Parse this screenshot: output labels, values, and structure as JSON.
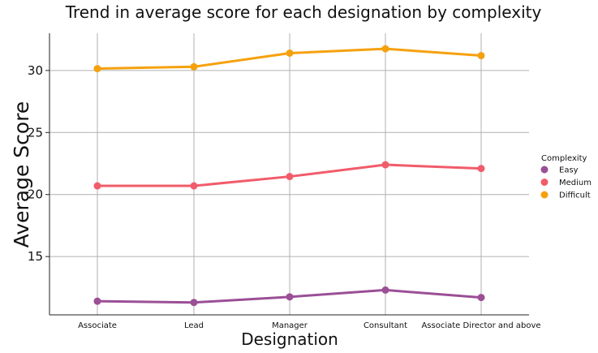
{
  "chart_data": {
    "type": "line",
    "title": "Trend in average score for each designation by complexity",
    "xlabel": "Designation",
    "ylabel": "Average Score",
    "categories": [
      "Associate",
      "Lead",
      "Manager",
      "Consultant",
      "Associate Director and above"
    ],
    "y_ticks": [
      15,
      20,
      25,
      30
    ],
    "ylim": [
      10.3,
      33.0
    ],
    "grid": true,
    "legend": {
      "title": "Complexity",
      "position": "right"
    },
    "series": [
      {
        "name": "Easy",
        "color": "#9b4f96",
        "values": [
          11.4,
          11.3,
          11.75,
          12.3,
          11.7
        ]
      },
      {
        "name": "Medium",
        "color": "#f15c6a",
        "values": [
          20.7,
          20.7,
          21.45,
          22.4,
          22.1
        ]
      },
      {
        "name": "Difficult",
        "color": "#f5a10e",
        "values": [
          30.15,
          30.3,
          31.4,
          31.75,
          31.2
        ]
      }
    ]
  }
}
